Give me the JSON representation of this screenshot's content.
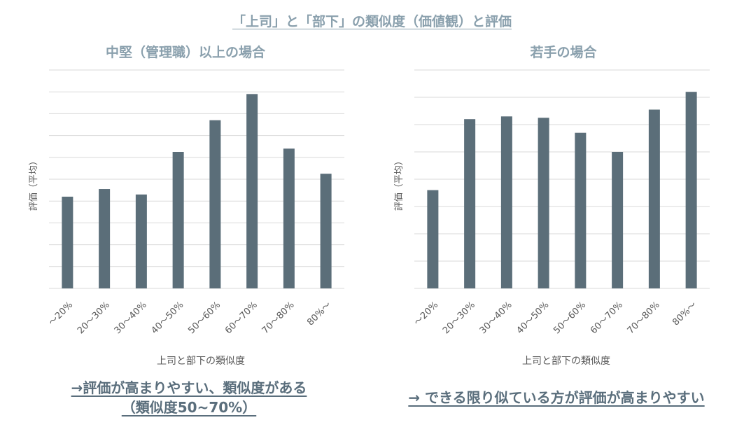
{
  "main_title": "「上司」と「部下」の類似度（価値観）と評価",
  "colors": {
    "bar": "#5b6e79",
    "grid": "#d9d9d9",
    "title": "#8aa0ad",
    "text": "#595959",
    "conclusion": "#5a6e7c"
  },
  "chart_data": [
    {
      "type": "bar",
      "title": "中堅（管理職）以上の場合",
      "xlabel": "上司と部下の類似度",
      "ylabel": "評価（平均）",
      "categories": [
        "～20%",
        "20～30%",
        "30～40%",
        "40～50%",
        "50～60%",
        "60～70%",
        "70～80%",
        "80%～"
      ],
      "values": [
        4.2,
        4.55,
        4.3,
        6.25,
        7.7,
        8.9,
        6.4,
        5.25
      ],
      "ylim": [
        0,
        10
      ],
      "gridlines": 10,
      "grid": true
    },
    {
      "type": "bar",
      "title": "若手の場合",
      "xlabel": "上司と部下の類似度",
      "ylabel": "評価（平均）",
      "categories": [
        "～20%",
        "20～30%",
        "30～40%",
        "40～50%",
        "50～60%",
        "60～70%",
        "70～80%",
        "80%～"
      ],
      "values": [
        3.6,
        6.2,
        6.3,
        6.25,
        5.7,
        5.0,
        6.55,
        7.2
      ],
      "ylim": [
        0,
        8
      ],
      "gridlines": 8,
      "grid": true
    }
  ],
  "conclusions": {
    "left_line1": "→評価が高まりやすい、類似度がある",
    "left_line2": "（類似度50~70%）",
    "right": "→ できる限り似ている方が評価が高まりやすい"
  }
}
